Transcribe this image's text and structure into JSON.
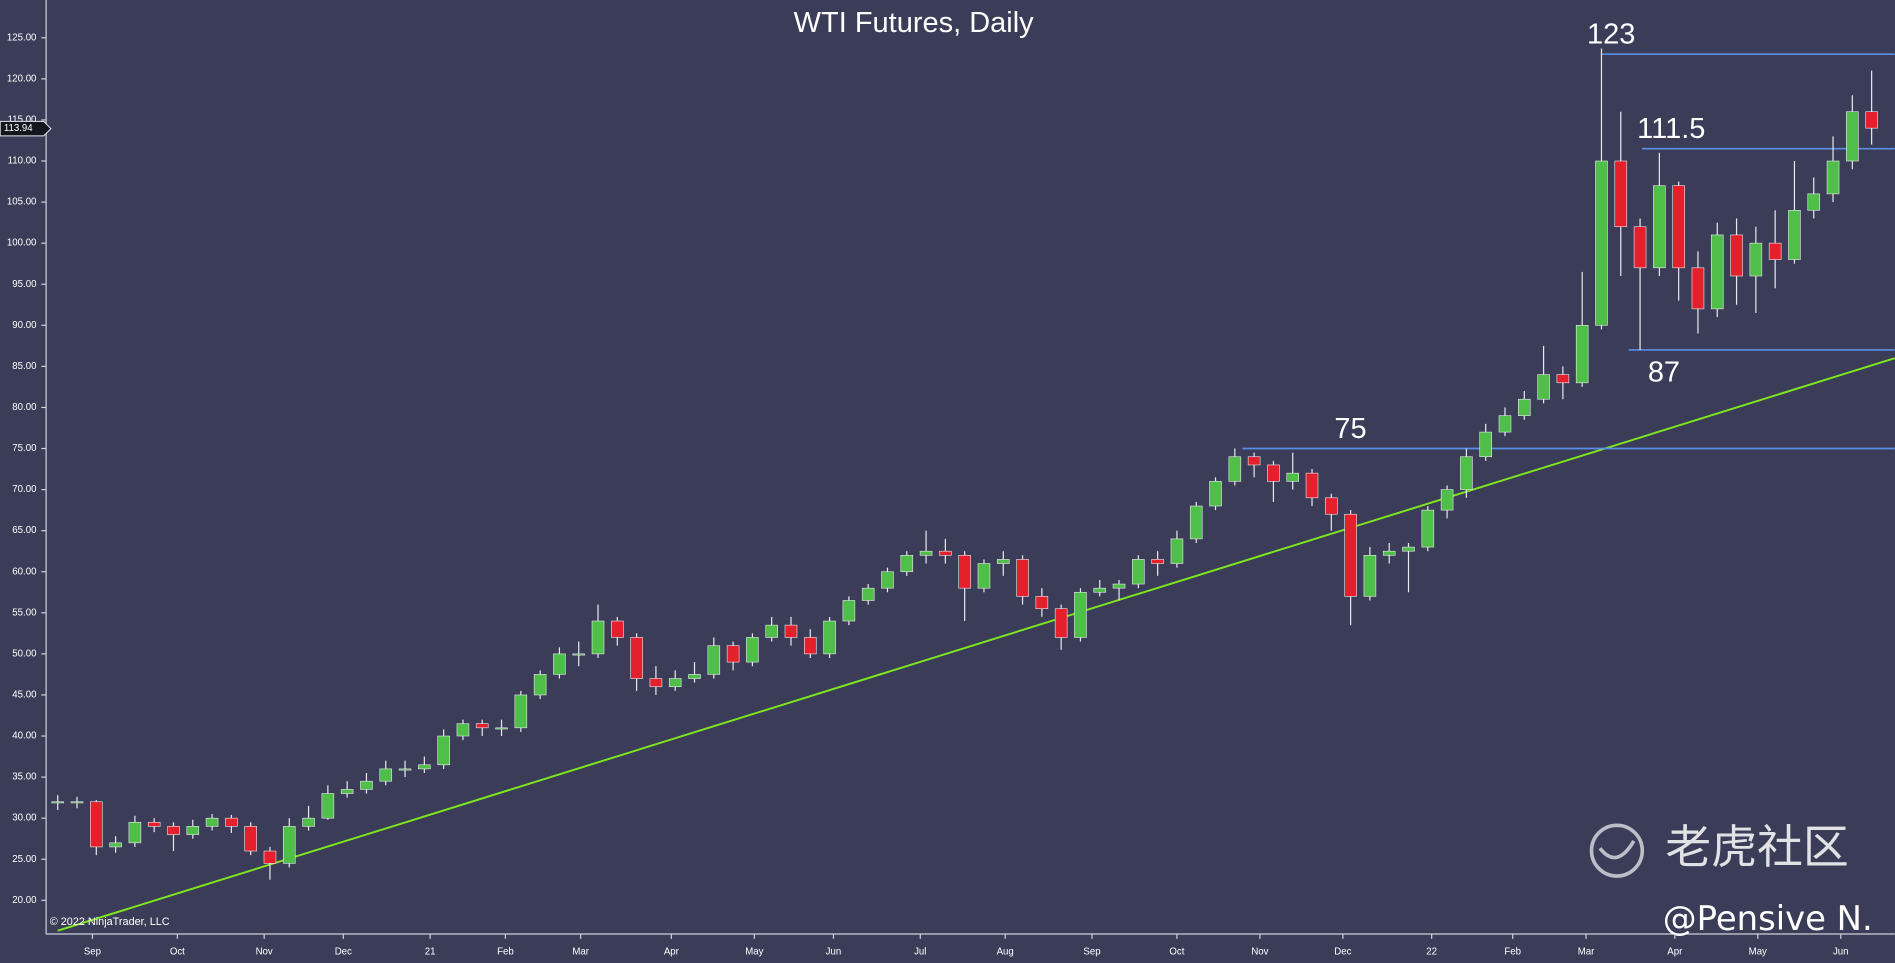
{
  "chart_data": {
    "type": "candlestick",
    "title": "WTI Futures, Daily",
    "x": [
      0,
      1,
      2,
      3,
      4,
      5,
      6,
      7,
      8,
      9,
      10,
      11,
      12,
      13,
      14,
      15,
      16,
      17,
      18,
      19,
      20,
      21,
      22,
      23,
      24,
      25,
      26,
      27,
      28,
      29,
      30,
      31,
      32,
      33,
      34,
      35,
      36,
      37,
      38,
      39,
      40,
      41,
      42,
      43,
      44,
      45,
      46,
      47,
      48,
      49,
      50,
      51,
      52,
      53,
      54,
      55,
      56,
      57,
      58,
      59,
      60,
      61,
      62,
      63,
      64,
      65,
      66,
      67,
      68,
      69,
      70,
      71,
      72,
      73,
      74,
      75,
      76,
      77,
      78,
      79,
      80,
      81,
      82,
      83,
      84,
      85,
      86,
      87,
      88,
      89,
      90,
      91,
      92,
      93,
      94
    ],
    "open": [
      32,
      32,
      32,
      26.5,
      27,
      29.5,
      29,
      28,
      29,
      30,
      29,
      26,
      24.5,
      29,
      30,
      33,
      33.5,
      34.5,
      36,
      36,
      36.5,
      40,
      41.5,
      41,
      41,
      45,
      47.5,
      50,
      50,
      54,
      52,
      47,
      46,
      47,
      47.5,
      51,
      49,
      52,
      53.5,
      52,
      50,
      54,
      56.5,
      58,
      60,
      62,
      62.5,
      62,
      58,
      61,
      61.5,
      57,
      55.5,
      52,
      57.5,
      58,
      58.5,
      61.5,
      61,
      64,
      68,
      71,
      74,
      73,
      71,
      72,
      69,
      67,
      57,
      62,
      62.5,
      63,
      67.5,
      70,
      74,
      77,
      79,
      81,
      84,
      83,
      90,
      110,
      102,
      97,
      107,
      97,
      92,
      101,
      96,
      100,
      98,
      104,
      106,
      110,
      116
    ],
    "high": [
      32.8,
      32.6,
      32.2,
      27.8,
      30.3,
      30,
      29.5,
      29.8,
      30.5,
      30.4,
      29.5,
      26.5,
      30,
      31.5,
      34,
      34.5,
      35.5,
      37,
      37,
      37.5,
      40.8,
      42,
      42,
      42,
      45.5,
      48,
      50.8,
      51.5,
      56,
      54.5,
      52.5,
      48.5,
      48,
      49,
      52,
      51.5,
      52.5,
      54.5,
      54.5,
      53,
      54.5,
      57,
      58.5,
      60.5,
      62.5,
      65,
      64,
      62.5,
      61.5,
      62.5,
      62,
      58,
      56,
      58,
      59,
      59,
      62,
      62.5,
      65,
      68.5,
      71.5,
      75,
      74.5,
      73.5,
      74.5,
      72.5,
      69.5,
      67.5,
      63,
      63.5,
      63.5,
      68,
      70.5,
      75,
      78,
      80,
      82,
      87.5,
      85,
      96.5,
      123.7,
      116,
      103,
      111,
      107.5,
      99,
      102.5,
      103,
      102,
      104,
      110,
      108,
      113,
      118,
      121
    ],
    "low": [
      31,
      31.2,
      25.5,
      25.8,
      26.5,
      28.3,
      26,
      27.5,
      28.5,
      28.2,
      25.5,
      22.5,
      24,
      28.5,
      29.8,
      32.5,
      33,
      34,
      35,
      35.5,
      36,
      39.5,
      40,
      40,
      40.5,
      44.5,
      47,
      48.5,
      49.5,
      51,
      45.5,
      45,
      45.5,
      46.5,
      47,
      48,
      48.5,
      51.5,
      51,
      49.5,
      49.5,
      53.5,
      56,
      57.5,
      59.5,
      61,
      61,
      54,
      57.5,
      59.5,
      56,
      54.5,
      50.5,
      51.5,
      57,
      56.5,
      58,
      59.5,
      60.5,
      63.5,
      67.5,
      70.5,
      71.5,
      68.5,
      70,
      68,
      65,
      53.5,
      56.5,
      61,
      57.5,
      62.5,
      66.5,
      69,
      73.5,
      76.5,
      78.5,
      80.5,
      81,
      82.5,
      89.5,
      96,
      87,
      96,
      93,
      89,
      91,
      92.5,
      91.5,
      94.5,
      97.5,
      103,
      105,
      109,
      112
    ],
    "close": [
      32,
      32,
      26.5,
      27,
      29.5,
      29,
      28,
      29,
      30,
      29,
      26,
      24.5,
      29,
      30,
      33,
      33.5,
      34.5,
      36,
      36,
      36.5,
      40,
      41.5,
      41,
      41,
      45,
      47.5,
      50,
      50,
      54,
      52,
      47,
      46,
      47,
      47.5,
      51,
      49,
      52,
      53.5,
      52,
      50,
      54,
      56.5,
      58,
      60,
      62,
      62.5,
      62,
      58,
      61,
      61.5,
      57,
      55.5,
      52,
      57.5,
      58,
      58.5,
      61.5,
      61,
      64,
      68,
      71,
      74,
      73,
      71,
      72,
      69,
      67,
      57,
      62,
      62.5,
      63,
      67.5,
      70,
      74,
      77,
      79,
      81,
      84,
      83,
      90,
      110,
      102,
      97,
      107,
      97,
      92,
      101,
      96,
      100,
      98,
      104,
      106,
      110,
      116,
      114
    ],
    "up_color": "#4fbf4a",
    "down_color": "#e3202b",
    "xlim": [
      -0.6,
      95.2
    ],
    "xticks": [
      {
        "value": 1.8,
        "label": "Sep"
      },
      {
        "value": 6.2,
        "label": "Oct"
      },
      {
        "value": 10.7,
        "label": "Nov"
      },
      {
        "value": 14.8,
        "label": "Dec"
      },
      {
        "value": 19.3,
        "label": "21"
      },
      {
        "value": 23.2,
        "label": "Feb"
      },
      {
        "value": 27.1,
        "label": "Mar"
      },
      {
        "value": 31.8,
        "label": "Apr"
      },
      {
        "value": 36.1,
        "label": "May"
      },
      {
        "value": 40.2,
        "label": "Jun"
      },
      {
        "value": 44.7,
        "label": "Jul"
      },
      {
        "value": 49.1,
        "label": "Aug"
      },
      {
        "value": 53.6,
        "label": "Sep"
      },
      {
        "value": 58,
        "label": "Oct"
      },
      {
        "value": 62.3,
        "label": "Nov"
      },
      {
        "value": 66.6,
        "label": "Dec"
      },
      {
        "value": 71.2,
        "label": "22"
      },
      {
        "value": 75.4,
        "label": "Feb"
      },
      {
        "value": 79.2,
        "label": "Mar"
      },
      {
        "value": 83.8,
        "label": "Apr"
      },
      {
        "value": 88.1,
        "label": "May"
      },
      {
        "value": 92.4,
        "label": "Jun"
      }
    ],
    "ylim": [
      15.9,
      129.6
    ],
    "yticks": [
      {
        "value": 20,
        "label": "20.00"
      },
      {
        "value": 25,
        "label": "25.00"
      },
      {
        "value": 30,
        "label": "30.00"
      },
      {
        "value": 35,
        "label": "35.00"
      },
      {
        "value": 40,
        "label": "40.00"
      },
      {
        "value": 45,
        "label": "45.00"
      },
      {
        "value": 50,
        "label": "50.00"
      },
      {
        "value": 55,
        "label": "55.00"
      },
      {
        "value": 60,
        "label": "60.00"
      },
      {
        "value": 65,
        "label": "65.00"
      },
      {
        "value": 70,
        "label": "70.00"
      },
      {
        "value": 75,
        "label": "75.00"
      },
      {
        "value": 80,
        "label": "80.00"
      },
      {
        "value": 85,
        "label": "85.00"
      },
      {
        "value": 90,
        "label": "90.00"
      },
      {
        "value": 95,
        "label": "95.00"
      },
      {
        "value": 100,
        "label": "100.00"
      },
      {
        "value": 105,
        "label": "105.00"
      },
      {
        "value": 110,
        "label": "110.00"
      },
      {
        "value": 115,
        "label": "115.00"
      },
      {
        "value": 120,
        "label": "120.00"
      },
      {
        "value": 125,
        "label": "125.00"
      }
    ],
    "last_price": 113.94,
    "levels": [
      {
        "label": "123",
        "value": 123,
        "x_start": 80,
        "color": "#5b8de8"
      },
      {
        "label": "111.5",
        "value": 111.5,
        "x_start": 82.1,
        "color": "#5b8de8"
      },
      {
        "label": "87",
        "value": 87,
        "x_start": 81.4,
        "color": "#5b8de8"
      },
      {
        "label": "75",
        "value": 75,
        "x_start": 61.4,
        "color": "#5b8de8"
      }
    ],
    "trendline": {
      "x": [
        0,
        95.2
      ],
      "values": [
        16.3,
        86
      ],
      "color": "#7ee81e"
    },
    "copyright": "© 2022 NinjaTrader, LLC",
    "watermark": "老虎社区",
    "credit": "@Pensive N."
  }
}
